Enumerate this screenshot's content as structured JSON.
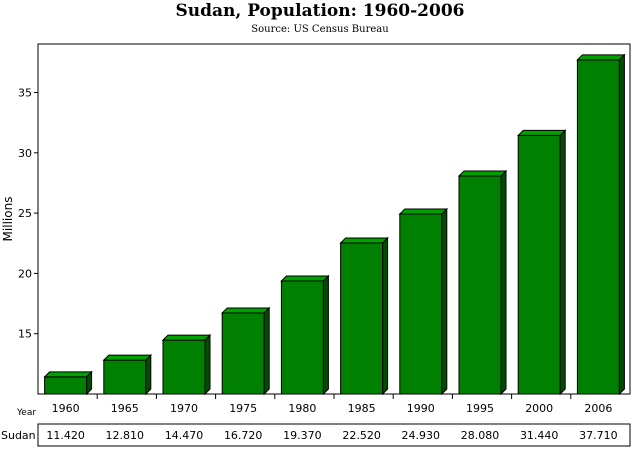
{
  "chart_data": {
    "type": "bar",
    "title": "Sudan, Population: 1960-2006",
    "subtitle": "Source: US Census Bureau",
    "ylabel": "Millions",
    "xlabel": "Year",
    "categories": [
      "1960",
      "1965",
      "1970",
      "1975",
      "1980",
      "1985",
      "1990",
      "1995",
      "2000",
      "2006"
    ],
    "series": [
      {
        "name": "Sudan",
        "values": [
          11.42,
          12.81,
          14.47,
          16.72,
          19.37,
          22.52,
          24.93,
          28.08,
          31.44,
          37.71
        ],
        "value_labels": [
          "11.420",
          "12.810",
          "14.470",
          "16.720",
          "19.370",
          "22.520",
          "24.930",
          "28.080",
          "31.440",
          "37.710"
        ]
      }
    ],
    "ylim": [
      10,
      39
    ],
    "yticks": [
      "15",
      "20",
      "25",
      "30",
      "35"
    ],
    "grid": false,
    "legend": "table-below",
    "colors": {
      "bar_front": "#008000",
      "bar_top": "#00a000",
      "bar_side": "#004c00",
      "bar_edge": "#000000"
    }
  }
}
